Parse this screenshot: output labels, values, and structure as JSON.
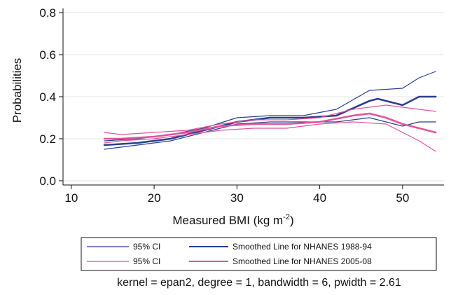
{
  "chart_data": {
    "type": "line",
    "xlabel_main": "Measured BMI (kg m",
    "xlabel_sup": "-2",
    "xlabel_close": ")",
    "ylabel": "Probabilities",
    "xlim": [
      9,
      55
    ],
    "ylim": [
      -0.02,
      0.82
    ],
    "xticks": [
      10,
      20,
      30,
      40,
      50
    ],
    "yticks": [
      0.0,
      0.2,
      0.4,
      0.6,
      0.8
    ],
    "ytick_labels": [
      "0.0",
      "0.2",
      "0.4",
      "0.6",
      "0.8"
    ],
    "grid": "horizontal",
    "legend": {
      "position": "bottom",
      "entries": [
        {
          "label": "95% CI",
          "color": "#2b3f8f"
        },
        {
          "label": "Smoothed Line for NHANES 1988-94",
          "color": "#2b3f8f"
        },
        {
          "label": "95% CI",
          "color": "#e0559a"
        },
        {
          "label": "Smoothed Line for NHANES 2005-08",
          "color": "#e0559a"
        }
      ]
    },
    "note": "kernel = epan2, degree = 1, bandwidth = 6, pwidth = 2.61",
    "colors": {
      "nhanes_1988_94": "#2b3f8f",
      "nhanes_2005_08": "#e0559a"
    },
    "series": [
      {
        "name": "Smoothed Line for NHANES 1988-94",
        "color": "#2b3f8f",
        "role": "smoothed",
        "x": [
          14,
          18,
          22,
          26,
          30,
          34,
          38,
          42,
          46,
          47,
          50,
          52,
          54
        ],
        "y": [
          0.17,
          0.18,
          0.2,
          0.24,
          0.28,
          0.3,
          0.3,
          0.31,
          0.38,
          0.39,
          0.36,
          0.4,
          0.4
        ]
      },
      {
        "name": "95% CI",
        "color": "#2b3f8f",
        "role": "ci-upper",
        "x": [
          14,
          18,
          22,
          26,
          30,
          34,
          38,
          42,
          46,
          50,
          52,
          54
        ],
        "y": [
          0.19,
          0.2,
          0.22,
          0.25,
          0.3,
          0.31,
          0.31,
          0.34,
          0.43,
          0.44,
          0.49,
          0.52
        ]
      },
      {
        "name": "95% CI",
        "color": "#2b3f8f",
        "role": "ci-lower",
        "x": [
          14,
          18,
          22,
          26,
          30,
          34,
          38,
          42,
          46,
          50,
          52,
          54
        ],
        "y": [
          0.15,
          0.17,
          0.19,
          0.23,
          0.27,
          0.28,
          0.28,
          0.28,
          0.3,
          0.26,
          0.28,
          0.28
        ]
      },
      {
        "name": "Smoothed Line for NHANES 2005-08",
        "color": "#e0559a",
        "role": "smoothed",
        "x": [
          14,
          16,
          20,
          24,
          28,
          32,
          36,
          40,
          44,
          46,
          48,
          50,
          52,
          54
        ],
        "y": [
          0.2,
          0.2,
          0.21,
          0.23,
          0.26,
          0.27,
          0.27,
          0.28,
          0.31,
          0.32,
          0.3,
          0.27,
          0.25,
          0.23
        ]
      },
      {
        "name": "95% CI",
        "color": "#e0559a",
        "role": "ci-upper",
        "x": [
          14,
          16,
          20,
          24,
          28,
          32,
          36,
          40,
          44,
          48,
          50,
          52,
          54
        ],
        "y": [
          0.23,
          0.22,
          0.23,
          0.24,
          0.27,
          0.29,
          0.29,
          0.3,
          0.34,
          0.36,
          0.35,
          0.34,
          0.33
        ]
      },
      {
        "name": "95% CI",
        "color": "#e0559a",
        "role": "ci-lower",
        "x": [
          14,
          16,
          20,
          24,
          28,
          32,
          36,
          40,
          44,
          48,
          50,
          52,
          54
        ],
        "y": [
          0.18,
          0.19,
          0.2,
          0.22,
          0.24,
          0.25,
          0.25,
          0.27,
          0.28,
          0.27,
          0.23,
          0.19,
          0.14
        ]
      }
    ]
  }
}
